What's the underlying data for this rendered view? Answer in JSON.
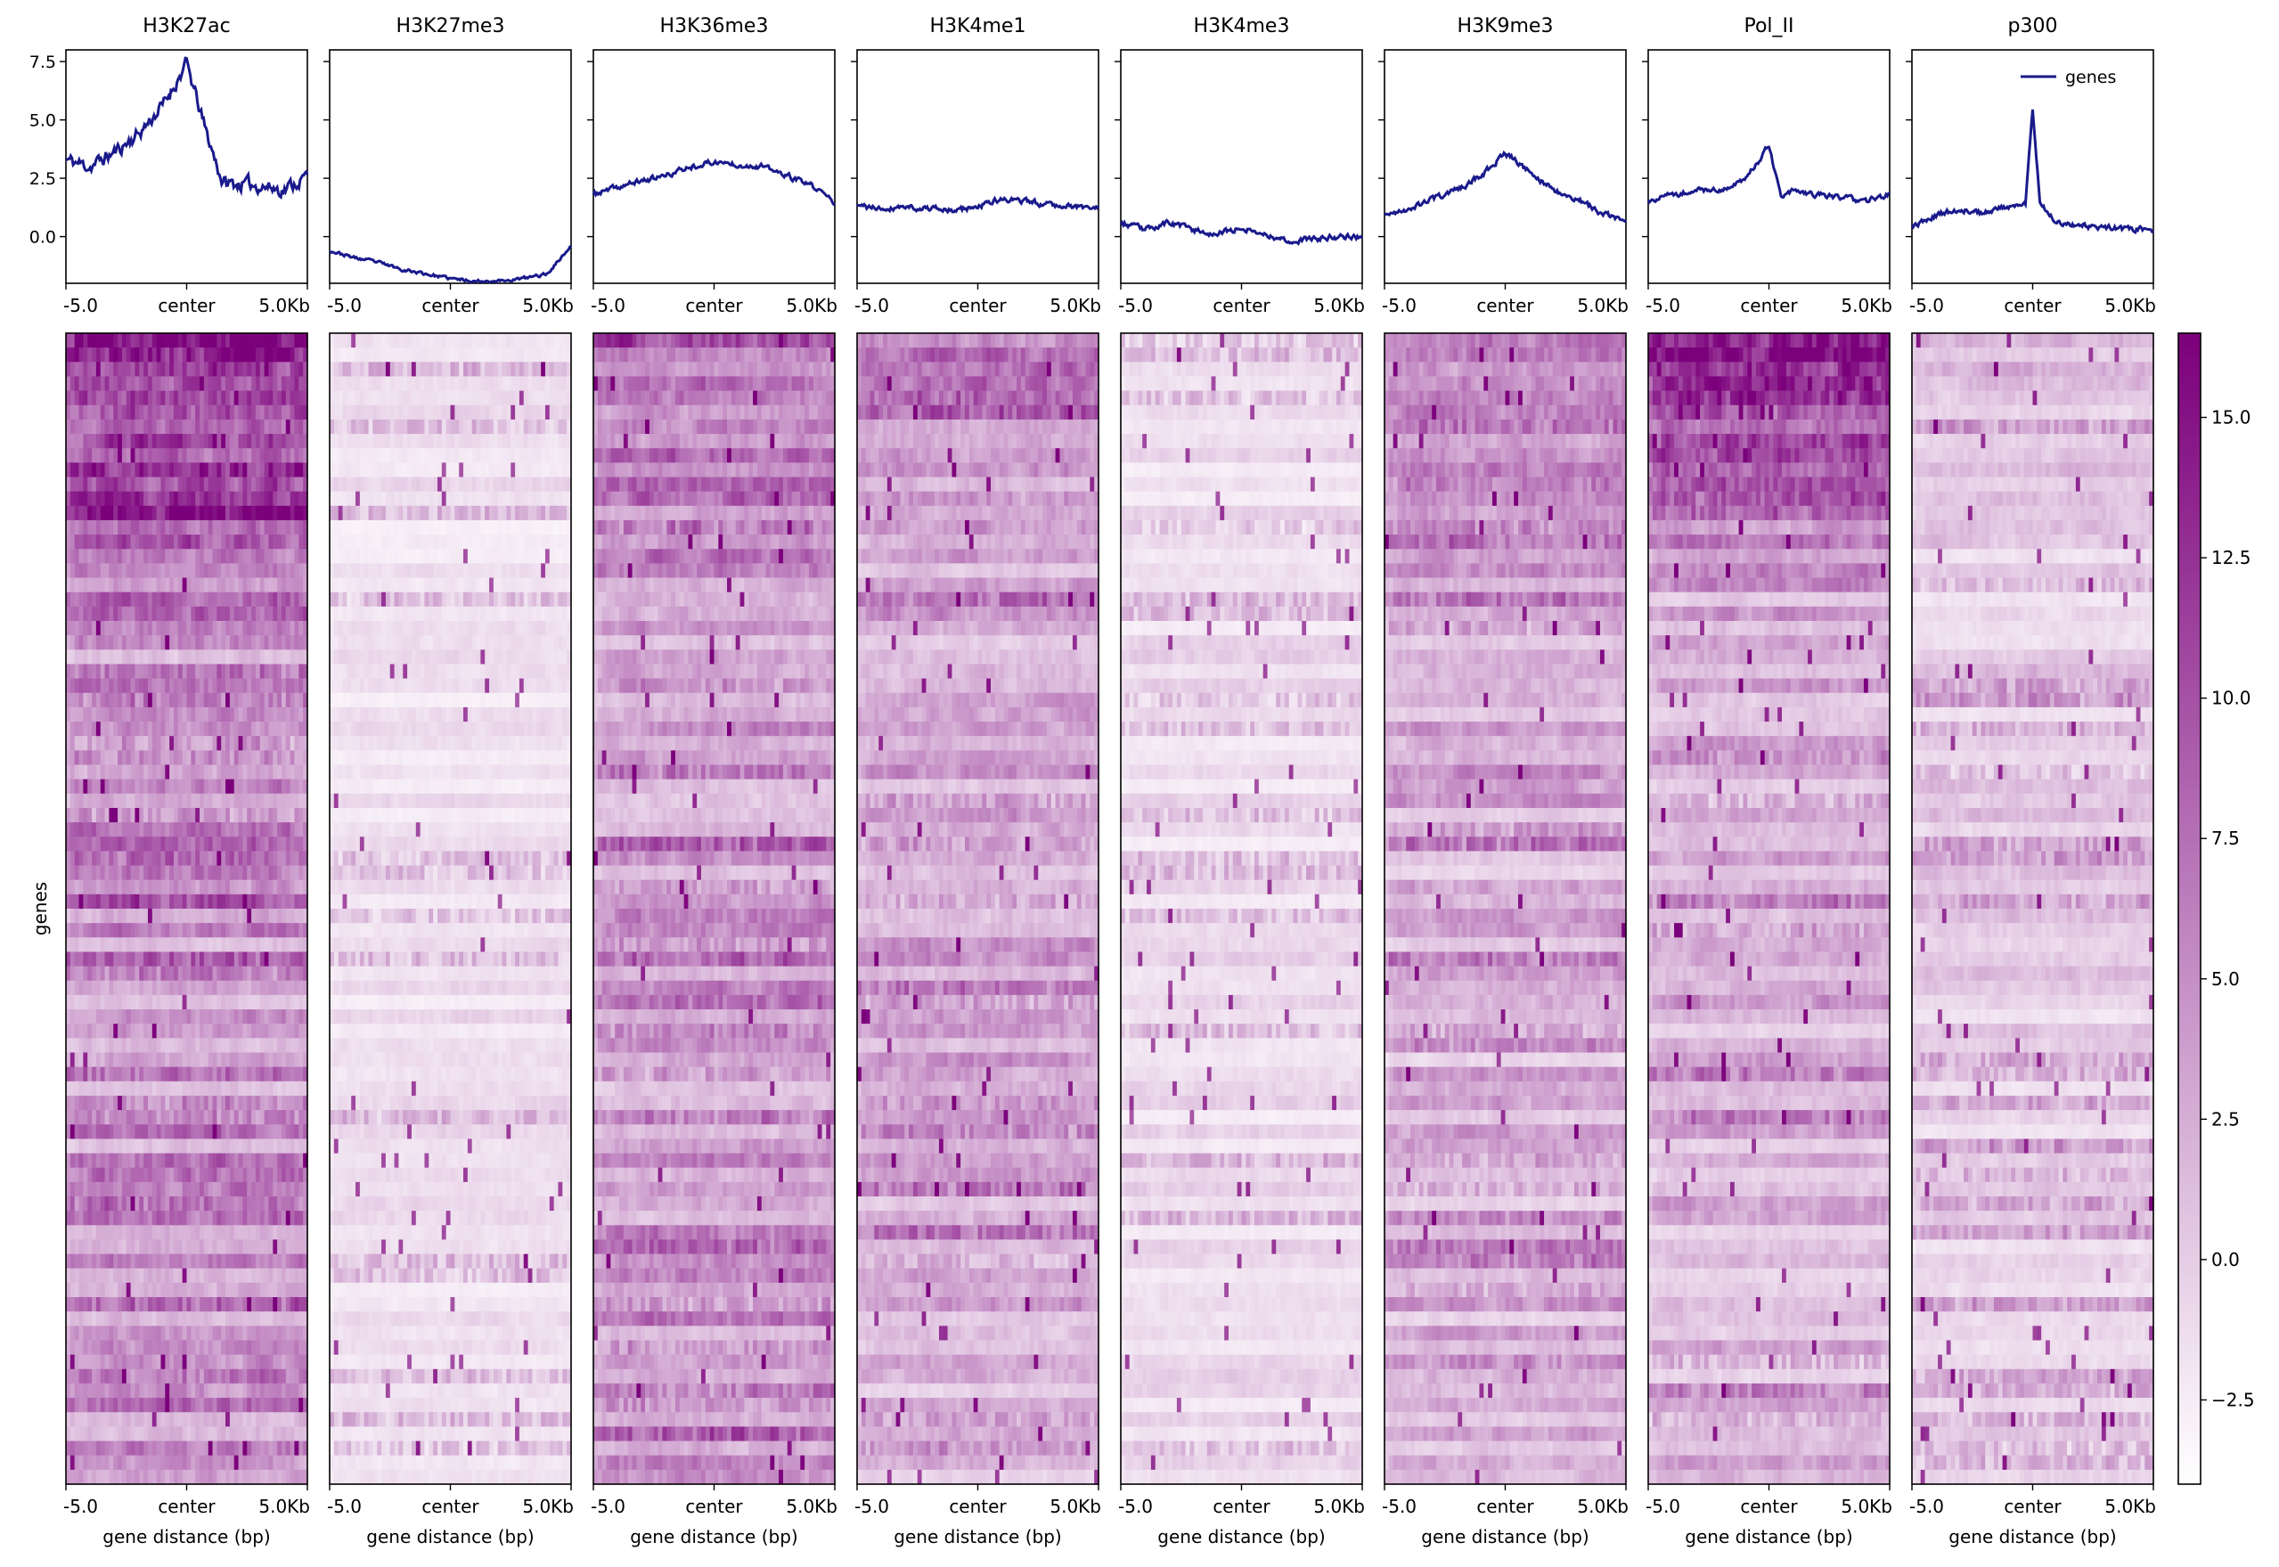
{
  "chart_data": {
    "type": "heatmap",
    "description_type": "deepTools-style profile + heatmap panels",
    "x_ticks": [
      "-5.0",
      "center",
      "5.0Kb"
    ],
    "xlabel": "gene distance (bp)",
    "ylabel": "genes",
    "legend_label": "genes",
    "legend_location": "upper right of last profile",
    "profile_line_color": "#1a1a8c",
    "heatmap_colormap": [
      "#ffffff",
      "#7b007b"
    ],
    "colorbar": {
      "range": [
        -4.0,
        16.5
      ],
      "ticks": [
        "15.0",
        "12.5",
        "10.0",
        "7.5",
        "5.0",
        "2.5",
        "0.0",
        "−2.5"
      ]
    },
    "profile_ylim": [
      -2.0,
      8.0
    ],
    "profile_yticks": [
      "7.5",
      "5.0",
      "2.5",
      "0.0"
    ],
    "panels": [
      {
        "name": "H3K27ac",
        "profile_anchor": [
          [
            -5,
            3.3
          ],
          [
            -4,
            3.0
          ],
          [
            -3,
            3.6
          ],
          [
            -2,
            4.4
          ],
          [
            -1,
            5.6
          ],
          [
            0,
            7.4
          ],
          [
            0.8,
            4.5
          ],
          [
            1.5,
            2.3
          ],
          [
            3,
            2.2
          ],
          [
            4,
            2.0
          ],
          [
            5,
            2.6
          ]
        ],
        "heat_level": 0.45,
        "heat_top_boost": 0.5,
        "seed": 11
      },
      {
        "name": "H3K27me3",
        "profile_anchor": [
          [
            -5,
            -0.6
          ],
          [
            -4,
            -0.9
          ],
          [
            -3,
            -1.1
          ],
          [
            -2,
            -1.4
          ],
          [
            -1,
            -1.6
          ],
          [
            0,
            -1.8
          ],
          [
            1,
            -1.9
          ],
          [
            2,
            -1.9
          ],
          [
            3,
            -1.8
          ],
          [
            4,
            -1.6
          ],
          [
            5,
            -0.4
          ]
        ],
        "heat_level": 0.12,
        "heat_top_boost": 0.0,
        "seed": 23
      },
      {
        "name": "H3K36me3",
        "profile_anchor": [
          [
            -5,
            1.8
          ],
          [
            -4,
            2.1
          ],
          [
            -3,
            2.4
          ],
          [
            -2,
            2.6
          ],
          [
            -1,
            3.0
          ],
          [
            0,
            3.2
          ],
          [
            1,
            3.1
          ],
          [
            2,
            3.0
          ],
          [
            3,
            2.6
          ],
          [
            4,
            2.2
          ],
          [
            5,
            1.5
          ]
        ],
        "heat_level": 0.38,
        "heat_top_boost": 0.2,
        "seed": 37
      },
      {
        "name": "H3K4me1",
        "profile_anchor": [
          [
            -5,
            1.3
          ],
          [
            -4,
            1.2
          ],
          [
            -3,
            1.3
          ],
          [
            -2,
            1.2
          ],
          [
            -1,
            1.1
          ],
          [
            0,
            1.3
          ],
          [
            1,
            1.6
          ],
          [
            2,
            1.5
          ],
          [
            3,
            1.4
          ],
          [
            4,
            1.3
          ],
          [
            5,
            1.2
          ]
        ],
        "heat_level": 0.33,
        "heat_top_boost": 0.15,
        "seed": 41
      },
      {
        "name": "H3K4me3",
        "profile_anchor": [
          [
            -5,
            0.6
          ],
          [
            -4,
            0.3
          ],
          [
            -3,
            0.6
          ],
          [
            -2,
            0.3
          ],
          [
            -1,
            0.1
          ],
          [
            0,
            0.4
          ],
          [
            1,
            0.1
          ],
          [
            2,
            -0.2
          ],
          [
            3,
            -0.1
          ],
          [
            4,
            0.0
          ],
          [
            5,
            0.0
          ]
        ],
        "heat_level": 0.14,
        "heat_top_boost": 0.0,
        "seed": 53
      },
      {
        "name": "H3K9me3",
        "profile_anchor": [
          [
            -5,
            0.9
          ],
          [
            -4,
            1.2
          ],
          [
            -3,
            1.6
          ],
          [
            -2,
            2.0
          ],
          [
            -1,
            2.6
          ],
          [
            0,
            3.6
          ],
          [
            1,
            2.8
          ],
          [
            2,
            2.0
          ],
          [
            3,
            1.6
          ],
          [
            4,
            1.0
          ],
          [
            5,
            0.6
          ]
        ],
        "heat_level": 0.32,
        "heat_top_boost": 0.2,
        "seed": 67
      },
      {
        "name": "Pol_II",
        "profile_anchor": [
          [
            -5,
            1.5
          ],
          [
            -4,
            1.8
          ],
          [
            -3,
            2.0
          ],
          [
            -2,
            2.0
          ],
          [
            -1,
            2.4
          ],
          [
            0,
            3.9
          ],
          [
            0.5,
            1.6
          ],
          [
            1,
            2.0
          ],
          [
            2,
            1.8
          ],
          [
            3,
            1.7
          ],
          [
            4,
            1.5
          ],
          [
            5,
            1.8
          ]
        ],
        "heat_level": 0.3,
        "heat_top_boost": 0.6,
        "seed": 71
      },
      {
        "name": "p300",
        "profile_anchor": [
          [
            -5,
            0.4
          ],
          [
            -4,
            0.9
          ],
          [
            -3,
            1.2
          ],
          [
            -2,
            1.0
          ],
          [
            -1,
            1.3
          ],
          [
            -0.3,
            1.4
          ],
          [
            0,
            5.4
          ],
          [
            0.3,
            1.5
          ],
          [
            1,
            0.6
          ],
          [
            2,
            0.5
          ],
          [
            3,
            0.4
          ],
          [
            4,
            0.3
          ],
          [
            5,
            0.3
          ]
        ],
        "heat_level": 0.2,
        "heat_top_boost": 0.05,
        "seed": 89
      }
    ]
  }
}
